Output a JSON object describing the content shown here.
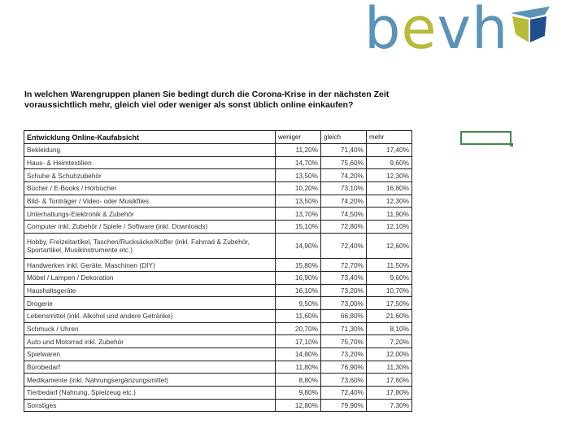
{
  "logo": {
    "text": "bevh",
    "colors": {
      "primary": "#5a93b8",
      "accent": "#b6bb3a",
      "dark": "#1f4e8c"
    }
  },
  "question": "In welchen Warengruppen planen Sie bedingt durch die Corona-Krise in der nächsten Zeit voraussichtlich mehr, gleich viel oder weniger als sonst üblich online einkaufen?",
  "table": {
    "headers": [
      "Entwicklung Online-Kaufabsicht",
      "weniger",
      "gleich",
      "mehr"
    ],
    "rows": [
      [
        "Bekleidung",
        "11,20%",
        "71,40%",
        "17,40%"
      ],
      [
        "Haus- & Heimtextilien",
        "14,70%",
        "75,60%",
        "9,60%"
      ],
      [
        "Schuhe & Schuhzubehör",
        "13,50%",
        "74,20%",
        "12,30%"
      ],
      [
        "Bücher / E-Books / Hörbücher",
        "10,20%",
        "73,10%",
        "16,80%"
      ],
      [
        "Bild- & Tonträger / Video- oder Musikfiles",
        "13,50%",
        "74,20%",
        "12,30%"
      ],
      [
        "Unterhaltungs-Elektronik & Zubehör",
        "13,70%",
        "74,50%",
        "11,90%"
      ],
      [
        "Computer inkl. Zubehör / Spiele / Software (inkl. Downloads)",
        "15,10%",
        "72,80%",
        "12,10%"
      ],
      [
        "Hobby, Freizeitartikel, Taschen/Rucksäcke/Koffer (inkl. Fahrrad & Zubehör, Sportartikel, Musikinstrumente etc.)",
        "14,90%",
        "72,40%",
        "12,60%"
      ],
      [
        "Handwerken inkl. Geräte, Maschinen (DIY)",
        "15,80%",
        "72,70%",
        "11,50%"
      ],
      [
        "Möbel / Lampen / Dekoration",
        "16,90%",
        "73,40%",
        "9,60%"
      ],
      [
        "Haushaltsgeräte",
        "16,10%",
        "73,20%",
        "10,70%"
      ],
      [
        "Drogerie",
        "9,50%",
        "73,00%",
        "17,50%"
      ],
      [
        "Lebensmittel (inkl. Alkohol und andere Getränke)",
        "11,60%",
        "66,80%",
        "21,60%"
      ],
      [
        "Schmuck / Uhren",
        "20,70%",
        "71,30%",
        "8,10%"
      ],
      [
        "Auto und Motorrad inkl. Zubehör",
        "17,10%",
        "75,70%",
        "7,20%"
      ],
      [
        "Spielwaren",
        "14,80%",
        "73,20%",
        "12,00%"
      ],
      [
        "Bürobedarf",
        "11,80%",
        "76,90%",
        "11,30%"
      ],
      [
        "Medikamente (inkl. Nahrungsergänzungsmittel)",
        "8,80%",
        "73,60%",
        "17,60%"
      ],
      [
        "Tierbedarf (Nahrung, Spielzeug etc.)",
        "9,80%",
        "72,40%",
        "17,80%"
      ],
      [
        "Sonstiges",
        "12,80%",
        "79,90%",
        "7,30%"
      ]
    ]
  },
  "selection_color": "#3f8a4a"
}
